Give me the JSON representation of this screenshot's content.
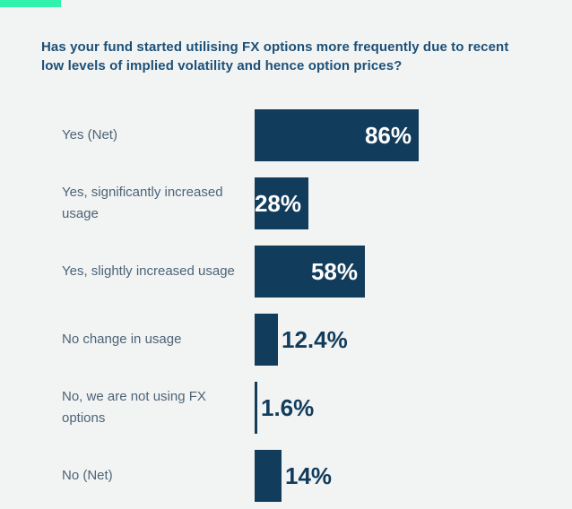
{
  "page": {
    "background": "#f2f3f3"
  },
  "accent": {
    "name": "teal-accent-bar",
    "color": "#30f2ac"
  },
  "chart_data": {
    "type": "bar",
    "orientation": "horizontal",
    "title": "Has your fund started utilising FX options more frequently due to recent\nlow levels of implied volatility and hence option prices?",
    "xlabel": "",
    "ylabel": "",
    "axes_visible": false,
    "grid": false,
    "legend": null,
    "xlim": [
      0,
      94
    ],
    "categories": [
      "Yes (Net)",
      "Yes, significantly increased usage",
      "Yes, slightly increased usage",
      "No change in usage",
      "No, we are not using FX options",
      "No (Net)"
    ],
    "values": [
      86,
      28,
      58,
      12.4,
      1.6,
      14
    ],
    "rows": [
      {
        "label": "Yes (Net)",
        "value": 86,
        "value_label": "86%",
        "value_position": "inside"
      },
      {
        "label": "Yes, significantly increased\nusage",
        "value": 28,
        "value_label": "28%",
        "value_position": "inside"
      },
      {
        "label": "Yes, slightly increased usage",
        "value": 58,
        "value_label": "58%",
        "value_position": "inside"
      },
      {
        "label": "No change in usage",
        "value": 12.4,
        "value_label": "12.4%",
        "value_position": "outside"
      },
      {
        "label": "No, we are not using FX\noptions",
        "value": 1.6,
        "value_label": "1.6%",
        "value_position": "outside"
      },
      {
        "label": "No (Net)",
        "value": 14,
        "value_label": "14%",
        "value_position": "outside"
      }
    ],
    "colors": {
      "bar": "#123c5b",
      "title": "#1c5077",
      "category_label": "#4d6477",
      "value_inside": "#ffffff",
      "value_outside": "#123c5b"
    },
    "pixels_per_percent": 2.128
  }
}
